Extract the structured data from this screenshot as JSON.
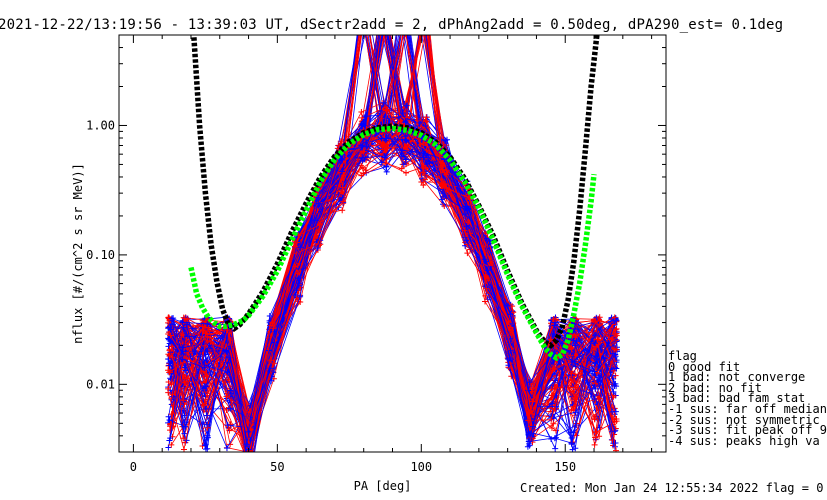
{
  "title": "2021-12-22/13:19:56 - 13:39:03 UT, dSectr2add = 2, dPhAng2add = 0.50deg, dPA290_est=    0.1deg",
  "footer": "Created: Mon Jan 24 12:55:34 2022   flag = 0",
  "legend": {
    "title": "flag",
    "items": [
      " 0 good fit",
      " 1 bad: not converge",
      " 2 bad: no fit",
      " 3 bad: bad fam stat",
      "-1 sus: far off median",
      "-2 sus: not symmetric",
      "-3 sus: fit peak off 9",
      "-4 sus: peaks high va"
    ]
  },
  "chart_data": {
    "type": "line",
    "xlabel": "PA [deg]",
    "ylabel": "nflux [#/(cm^2 s sr MeV)]",
    "xlim": [
      -5,
      185
    ],
    "ylim": [
      0.003,
      5.0
    ],
    "yscale": "log",
    "xticks": [
      0,
      50,
      100,
      150
    ],
    "xtick_labels": [
      "0",
      "50",
      "100",
      "150"
    ],
    "yticks": [
      0.01,
      0.1,
      1.0
    ],
    "ytick_labels": [
      "0.01",
      "0.10",
      "1.00"
    ],
    "colors": {
      "axes": "#000000",
      "spectra_red": "#ff0000",
      "spectra_blue": "#0000ff",
      "fit_black": "#000000",
      "fit_green": "#00ff00"
    },
    "series": [
      {
        "color": "#000000",
        "style": "thick-dashed",
        "x": [
          21,
          23,
          25,
          27,
          29,
          31,
          33,
          35,
          37,
          40,
          45,
          50,
          55,
          60,
          65,
          70,
          75,
          80,
          85,
          90,
          95,
          100,
          105,
          110,
          115,
          120,
          125,
          130,
          135,
          140,
          143,
          145,
          147,
          149,
          151,
          153,
          155,
          157,
          159,
          161
        ],
        "y": [
          4.8,
          1.0,
          0.3,
          0.12,
          0.062,
          0.038,
          0.029,
          0.027,
          0.029,
          0.035,
          0.052,
          0.085,
          0.15,
          0.25,
          0.4,
          0.58,
          0.75,
          0.88,
          0.96,
          0.99,
          0.96,
          0.88,
          0.74,
          0.57,
          0.39,
          0.24,
          0.14,
          0.075,
          0.042,
          0.026,
          0.021,
          0.02,
          0.022,
          0.028,
          0.045,
          0.09,
          0.22,
          0.65,
          2.0,
          5.0
        ]
      },
      {
        "color": "#00ff00",
        "style": "thick-dashed",
        "x": [
          20,
          22,
          24,
          26,
          28,
          30,
          32,
          35,
          38,
          40,
          45,
          50,
          55,
          60,
          65,
          70,
          75,
          80,
          85,
          90,
          95,
          100,
          105,
          110,
          115,
          120,
          125,
          130,
          135,
          140,
          143,
          145,
          147,
          149,
          151,
          153,
          155,
          157,
          159,
          160
        ],
        "y": [
          0.08,
          0.05,
          0.039,
          0.033,
          0.03,
          0.028,
          0.028,
          0.029,
          0.031,
          0.034,
          0.048,
          0.075,
          0.13,
          0.22,
          0.37,
          0.55,
          0.72,
          0.85,
          0.93,
          0.95,
          0.92,
          0.84,
          0.71,
          0.54,
          0.37,
          0.23,
          0.13,
          0.07,
          0.04,
          0.025,
          0.019,
          0.017,
          0.016,
          0.017,
          0.022,
          0.035,
          0.06,
          0.12,
          0.26,
          0.42
        ]
      }
    ]
  }
}
